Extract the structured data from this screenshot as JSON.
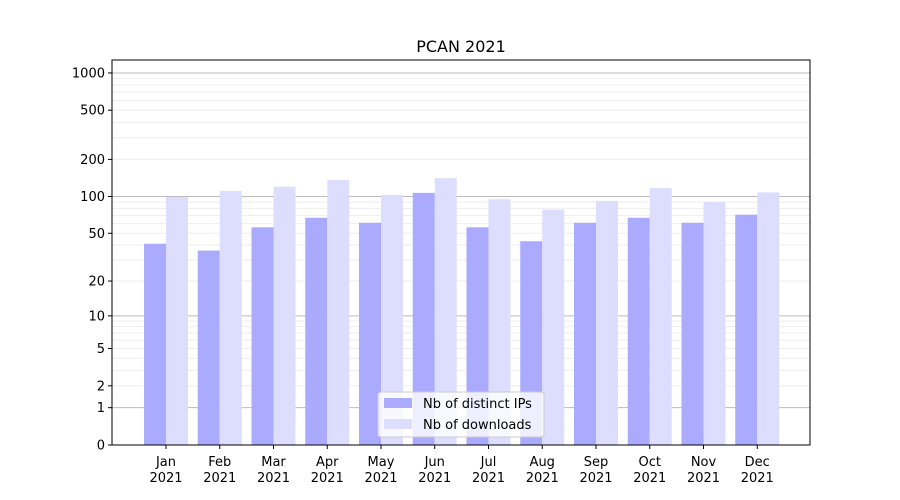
{
  "chart_data": {
    "type": "bar",
    "title": "PCAN 2021",
    "xlabel": "",
    "ylabel": "",
    "yscale": "log(1+x)",
    "ylim": [
      0,
      1270
    ],
    "yticks": [
      0,
      1,
      2,
      5,
      10,
      20,
      50,
      100,
      200,
      500,
      1000
    ],
    "ytick_labels": [
      "0",
      "1",
      "2",
      "5",
      "10",
      "20",
      "50",
      "100",
      "200",
      "500",
      "1000"
    ],
    "categories": [
      [
        "Jan",
        "2021"
      ],
      [
        "Feb",
        "2021"
      ],
      [
        "Mar",
        "2021"
      ],
      [
        "Apr",
        "2021"
      ],
      [
        "May",
        "2021"
      ],
      [
        "Jun",
        "2021"
      ],
      [
        "Jul",
        "2021"
      ],
      [
        "Aug",
        "2021"
      ],
      [
        "Sep",
        "2021"
      ],
      [
        "Oct",
        "2021"
      ],
      [
        "Nov",
        "2021"
      ],
      [
        "Dec",
        "2021"
      ]
    ],
    "series": [
      {
        "name": "Nb of distinct IPs",
        "color": "#aaaaff",
        "values": [
          41,
          36,
          56,
          67,
          61,
          107,
          56,
          43,
          61,
          67,
          61,
          71
        ]
      },
      {
        "name": "Nb of downloads",
        "color": "#ddddff",
        "values": [
          99,
          111,
          120,
          136,
          103,
          141,
          95,
          78,
          92,
          117,
          90,
          108
        ]
      }
    ],
    "grid": true,
    "legend": "lower-center"
  }
}
